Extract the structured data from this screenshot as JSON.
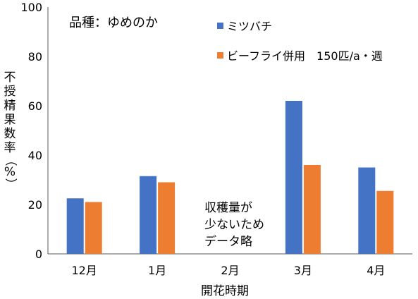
{
  "chart_data": {
    "type": "bar",
    "categories": [
      "12月",
      "1月",
      "2月",
      "3月",
      "4月"
    ],
    "series": [
      {
        "name": "ミツバチ",
        "color": "#4472C4",
        "values": [
          22.5,
          31.5,
          null,
          62,
          35
        ]
      },
      {
        "name": "ビーフライ併用　150匹/a・週",
        "color": "#ED7D31",
        "values": [
          21,
          29,
          null,
          36,
          25.5
        ]
      }
    ],
    "ylim": [
      0,
      100
    ],
    "yticks": [
      "0",
      "20",
      "40",
      "60",
      "80",
      "100"
    ],
    "ylabel": [
      "不",
      "授",
      "精",
      "果",
      "数",
      "率",
      "（",
      "%",
      "）"
    ],
    "xlabel": "開花時期",
    "grid": false,
    "legend_placement": "top-right",
    "annotations": {
      "cultivar": "品種：ゆめのか",
      "no_data_note": [
        "収穫量が",
        "少ないため",
        "データ略"
      ]
    }
  }
}
